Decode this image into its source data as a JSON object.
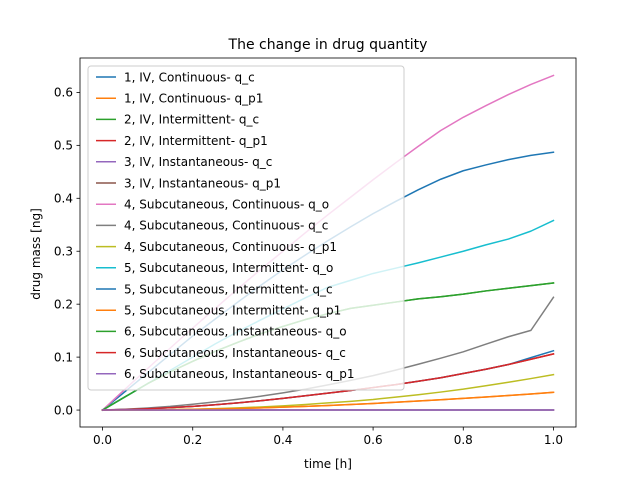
{
  "chart_data": {
    "type": "line",
    "title": "The change in drug quantity",
    "xlabel": "time [h]",
    "ylabel": "drug mass [ng]",
    "xlim": [
      -0.05,
      1.05
    ],
    "ylim": [
      -0.032,
      0.665
    ],
    "xticks": [
      0.0,
      0.2,
      0.4,
      0.6,
      0.8,
      1.0
    ],
    "xtick_labels": [
      "0.0",
      "0.2",
      "0.4",
      "0.6",
      "0.8",
      "1.0"
    ],
    "yticks": [
      0.0,
      0.1,
      0.2,
      0.3,
      0.4,
      0.5,
      0.6
    ],
    "ytick_labels": [
      "0.0",
      "0.1",
      "0.2",
      "0.3",
      "0.4",
      "0.5",
      "0.6"
    ],
    "grid": false,
    "legend_position": "upper left",
    "x": [
      0.0,
      0.05,
      0.1,
      0.15,
      0.2,
      0.25,
      0.3,
      0.35,
      0.4,
      0.45,
      0.5,
      0.55,
      0.6,
      0.65,
      0.7,
      0.75,
      0.8,
      0.85,
      0.9,
      0.95,
      1.0
    ],
    "series": [
      {
        "name": "1, IV, Continuous- q_c",
        "color": "#1f77b4",
        "values": [
          0.0,
          0.035,
          0.07,
          0.105,
          0.14,
          0.172,
          0.204,
          0.235,
          0.265,
          0.293,
          0.32,
          0.346,
          0.371,
          0.394,
          0.416,
          0.436,
          0.452,
          0.463,
          0.473,
          0.481,
          0.487
        ]
      },
      {
        "name": "1, IV, Continuous- q_p1",
        "color": "#ff7f0e",
        "values": [
          0.0,
          0.0001,
          0.0003,
          0.0007,
          0.0013,
          0.002,
          0.003,
          0.0042,
          0.0055,
          0.007,
          0.0087,
          0.0105,
          0.0125,
          0.0147,
          0.017,
          0.0195,
          0.022,
          0.0247,
          0.0275,
          0.0304,
          0.0335
        ]
      },
      {
        "name": "2, IV, Intermittent- q_c",
        "color": "#2ca02c",
        "values": [
          0.0,
          0.025,
          0.05,
          0.072,
          0.092,
          0.111,
          0.128,
          0.144,
          0.158,
          0.171,
          0.182,
          0.192,
          0.198,
          0.204,
          0.21,
          0.214,
          0.219,
          0.225,
          0.23,
          0.235,
          0.24
        ]
      },
      {
        "name": "2, IV, Intermittent- q_p1",
        "color": "#d62728",
        "values": [
          0.0,
          0.001,
          0.0025,
          0.0045,
          0.007,
          0.01,
          0.0135,
          0.0175,
          0.022,
          0.027,
          0.032,
          0.037,
          0.0425,
          0.048,
          0.0545,
          0.061,
          0.069,
          0.077,
          0.086,
          0.096,
          0.106
        ]
      },
      {
        "name": "3, IV, Instantaneous- q_c",
        "color": "#9467bd",
        "values": [
          0.0,
          0.0,
          0.0,
          0.0,
          0.0,
          0.0,
          0.0,
          0.0,
          0.0,
          0.0,
          0.0,
          0.0,
          0.0,
          0.0,
          0.0,
          0.0,
          0.0,
          0.0,
          0.0,
          0.0,
          0.0
        ]
      },
      {
        "name": "3, IV, Instantaneous- q_p1",
        "color": "#8c564b",
        "values": [
          0.0,
          0.0,
          0.0,
          0.0,
          0.0,
          0.0,
          0.0,
          0.0,
          0.0,
          0.0,
          0.0,
          0.0,
          0.0,
          0.0,
          0.0,
          0.0,
          0.0,
          0.0,
          0.0,
          0.0,
          0.0
        ]
      },
      {
        "name": "4, Subcutaneous, Continuous- q_o",
        "color": "#e377c2",
        "values": [
          0.0,
          0.0395,
          0.0785,
          0.117,
          0.155,
          0.192,
          0.229,
          0.265,
          0.3,
          0.335,
          0.369,
          0.402,
          0.435,
          0.467,
          0.498,
          0.528,
          0.553,
          0.575,
          0.596,
          0.615,
          0.632
        ]
      },
      {
        "name": "4, Subcutaneous, Continuous- q_c",
        "color": "#7f7f7f",
        "values": [
          0.0,
          0.0015,
          0.004,
          0.007,
          0.011,
          0.0155,
          0.0205,
          0.026,
          0.0325,
          0.0395,
          0.0475,
          0.056,
          0.065,
          0.0755,
          0.0865,
          0.098,
          0.11,
          0.1245,
          0.1385,
          0.1505,
          0.213
        ]
      },
      {
        "name": "4, Subcutaneous, Continuous- q_p1",
        "color": "#bcbd22",
        "values": [
          0.0,
          0.0001,
          0.0004,
          0.0009,
          0.0016,
          0.0027,
          0.0041,
          0.0059,
          0.008,
          0.0105,
          0.0135,
          0.0165,
          0.02,
          0.0245,
          0.029,
          0.034,
          0.0395,
          0.046,
          0.0525,
          0.0595,
          0.067
        ]
      },
      {
        "name": "5, Subcutaneous, Intermittent- q_o",
        "color": "#17becf",
        "values": [
          0.0,
          0.025,
          0.05,
          0.075,
          0.1,
          0.125,
          0.148,
          0.17,
          0.191,
          0.212,
          0.232,
          0.245,
          0.258,
          0.268,
          0.278,
          0.289,
          0.3,
          0.312,
          0.323,
          0.338,
          0.358
        ]
      },
      {
        "name": "5, Subcutaneous, Intermittent- q_c",
        "color": "#1f77b4",
        "values": [
          0.0,
          0.001,
          0.0025,
          0.0045,
          0.007,
          0.01,
          0.0135,
          0.0175,
          0.022,
          0.027,
          0.032,
          0.037,
          0.0425,
          0.048,
          0.0545,
          0.061,
          0.069,
          0.077,
          0.086,
          0.099,
          0.112
        ]
      },
      {
        "name": "5, Subcutaneous, Intermittent- q_p1",
        "color": "#ff7f0e",
        "values": [
          0.0,
          0.0001,
          0.0003,
          0.0007,
          0.0013,
          0.002,
          0.003,
          0.0042,
          0.0055,
          0.007,
          0.0087,
          0.0105,
          0.0125,
          0.0147,
          0.017,
          0.0195,
          0.022,
          0.0247,
          0.0275,
          0.0304,
          0.0335
        ]
      },
      {
        "name": "6, Subcutaneous, Instantaneous- q_o",
        "color": "#2ca02c",
        "values": [
          0.0,
          0.025,
          0.05,
          0.072,
          0.092,
          0.111,
          0.128,
          0.144,
          0.158,
          0.171,
          0.182,
          0.192,
          0.198,
          0.204,
          0.21,
          0.214,
          0.219,
          0.225,
          0.23,
          0.235,
          0.24
        ]
      },
      {
        "name": "6, Subcutaneous, Instantaneous- q_c",
        "color": "#d62728",
        "values": [
          0.0,
          0.001,
          0.0025,
          0.0045,
          0.007,
          0.01,
          0.0135,
          0.0175,
          0.022,
          0.027,
          0.032,
          0.037,
          0.0425,
          0.048,
          0.0545,
          0.061,
          0.069,
          0.077,
          0.086,
          0.096,
          0.106
        ]
      },
      {
        "name": "6, Subcutaneous, Instantaneous- q_p1",
        "color": "#9467bd",
        "values": [
          0.0,
          0.0,
          0.0,
          0.0,
          0.0,
          0.0,
          0.0,
          0.0,
          0.0,
          0.0,
          0.0,
          0.0,
          0.0,
          0.0,
          0.0,
          0.0,
          0.0,
          0.0,
          0.0,
          0.0,
          0.0
        ]
      }
    ]
  }
}
